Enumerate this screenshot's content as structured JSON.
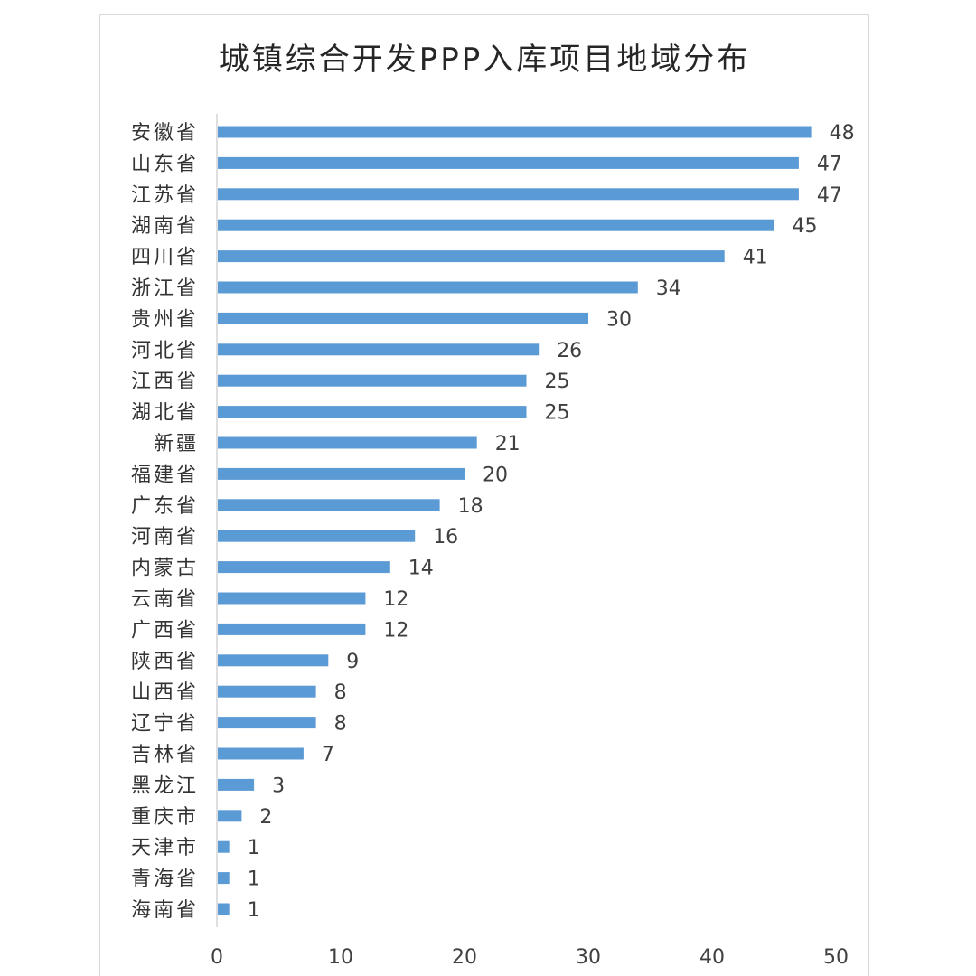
{
  "chart_data": {
    "type": "bar",
    "orientation": "horizontal",
    "title": "城镇综合开发PPP入库项目地域分布",
    "categories": [
      "安徽省",
      "山东省",
      "江苏省",
      "湖南省",
      "四川省",
      "浙江省",
      "贵州省",
      "河北省",
      "江西省",
      "湖北省",
      "新疆",
      "福建省",
      "广东省",
      "河南省",
      "内蒙古",
      "云南省",
      "广西省",
      "陕西省",
      "山西省",
      "辽宁省",
      "吉林省",
      "黑龙江",
      "重庆市",
      "天津市",
      "青海省",
      "海南省"
    ],
    "values": [
      48,
      47,
      47,
      45,
      41,
      34,
      30,
      26,
      25,
      25,
      21,
      20,
      18,
      16,
      14,
      12,
      12,
      9,
      8,
      8,
      7,
      3,
      2,
      1,
      1,
      1
    ],
    "xlim": [
      0,
      50
    ],
    "xticks": [
      0,
      10,
      20,
      30,
      40,
      50
    ],
    "xlabel": "",
    "ylabel": "",
    "grid": false,
    "legend": "none",
    "bar_color": "#5b9bd5"
  }
}
